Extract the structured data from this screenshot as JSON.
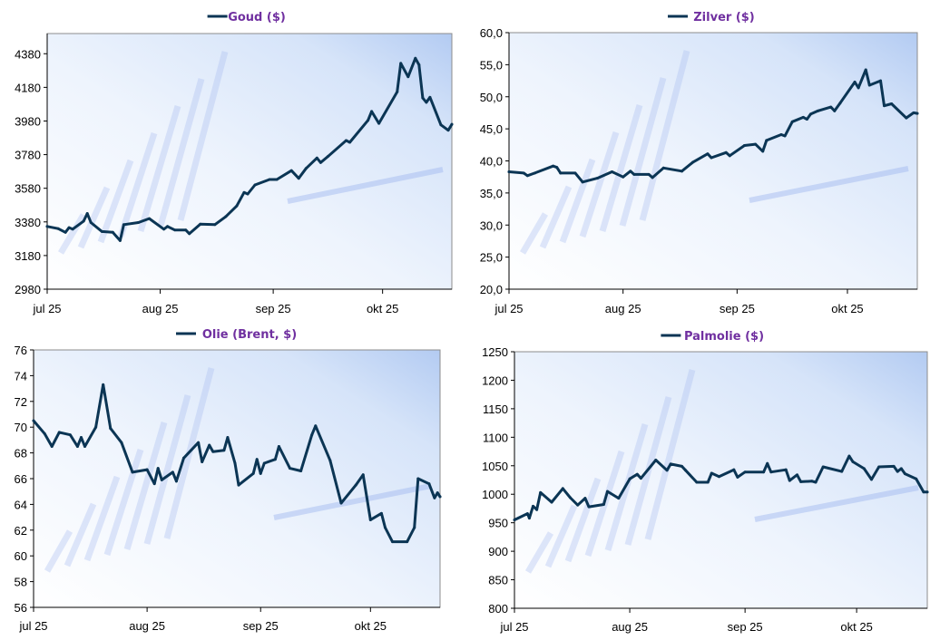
{
  "colors": {
    "line": "#0b3554",
    "title": "#7030a0",
    "axis": "#7f7f7f",
    "bg_light": "#ffffff",
    "bg_blue": "#bcd3f5"
  },
  "chart_data": [
    {
      "type": "line",
      "title": "Goud ($)",
      "legend": "top-center",
      "xlabel": "",
      "ylabel": "",
      "xlim": [
        0,
        111
      ],
      "xticks": [
        {
          "day": 0,
          "label": "jul 25"
        },
        {
          "day": 31,
          "label": "aug 25"
        },
        {
          "day": 62,
          "label": "sep 25"
        },
        {
          "day": 92,
          "label": "okt 25"
        }
      ],
      "ylim": [
        2980,
        4500
      ],
      "yticks": [
        2980,
        3180,
        3380,
        3580,
        3780,
        3980,
        4180,
        4380
      ],
      "ytick_labels": [
        "2980",
        "3180",
        "3380",
        "3580",
        "3780",
        "3980",
        "4180",
        "4380"
      ],
      "x": [
        0,
        3,
        5,
        6,
        7,
        10,
        11,
        12,
        15,
        18,
        20,
        21,
        25,
        28,
        32,
        33,
        35,
        38,
        39,
        42,
        46,
        49,
        52,
        54,
        55,
        57,
        61,
        63,
        67,
        69,
        71,
        74,
        75,
        77,
        82,
        83,
        88,
        89,
        91,
        96,
        97,
        99,
        101,
        102,
        103,
        104,
        105,
        108,
        110,
        111
      ],
      "y": [
        3353,
        3340,
        3318,
        3346,
        3337,
        3385,
        3430,
        3376,
        3323,
        3318,
        3269,
        3364,
        3376,
        3400,
        3337,
        3353,
        3332,
        3332,
        3310,
        3367,
        3364,
        3412,
        3475,
        3555,
        3546,
        3600,
        3632,
        3632,
        3685,
        3639,
        3698,
        3760,
        3733,
        3769,
        3864,
        3853,
        3984,
        4037,
        3966,
        4153,
        4323,
        4243,
        4353,
        4314,
        4117,
        4091,
        4121,
        3957,
        3925,
        3960
      ]
    },
    {
      "type": "line",
      "title": "Zilver ($)",
      "legend": "top-center",
      "xlabel": "",
      "ylabel": "",
      "xlim": [
        0,
        111
      ],
      "xticks": [
        {
          "day": 0,
          "label": "jul 25"
        },
        {
          "day": 31,
          "label": "aug 25"
        },
        {
          "day": 62,
          "label": "sep 25"
        },
        {
          "day": 92,
          "label": "okt 25"
        }
      ],
      "ylim": [
        20,
        60
      ],
      "yticks": [
        20,
        25,
        30,
        35,
        40,
        45,
        50,
        55,
        60
      ],
      "ytick_labels": [
        "20,0",
        "25,0",
        "30,0",
        "35,0",
        "40,0",
        "45,0",
        "50,0",
        "55,0",
        "60,0"
      ],
      "x": [
        0,
        4,
        5,
        7,
        12,
        13,
        14,
        18,
        20,
        24,
        28,
        31,
        33,
        34,
        38,
        39,
        42,
        47,
        50,
        54,
        55,
        59,
        60,
        64,
        67,
        69,
        70,
        74,
        75,
        77,
        80,
        81,
        82,
        84,
        87.5,
        88.5,
        90,
        94,
        95,
        97,
        98,
        101,
        102,
        104,
        108,
        110,
        111
      ],
      "y": [
        38.3,
        38.1,
        37.7,
        38.1,
        39.2,
        39.0,
        38.1,
        38.1,
        36.7,
        37.3,
        38.3,
        37.5,
        38.4,
        37.9,
        37.9,
        37.4,
        38.9,
        38.4,
        39.8,
        41.1,
        40.5,
        41.3,
        40.8,
        42.4,
        42.6,
        41.5,
        43.2,
        44.1,
        43.9,
        46.1,
        46.8,
        46.5,
        47.3,
        47.8,
        48.4,
        47.8,
        49.0,
        52.3,
        51.4,
        54.2,
        51.8,
        52.5,
        48.6,
        48.9,
        46.7,
        47.5,
        47.4
      ]
    },
    {
      "type": "line",
      "title": "Olie (Brent, $)",
      "legend": "top-center",
      "xlabel": "",
      "ylabel": "",
      "xlim": [
        0,
        111
      ],
      "xticks": [
        {
          "day": 0,
          "label": "jul 25"
        },
        {
          "day": 31,
          "label": "aug 25"
        },
        {
          "day": 62,
          "label": "sep 25"
        },
        {
          "day": 92,
          "label": "okt 25"
        }
      ],
      "ylim": [
        56,
        76
      ],
      "yticks": [
        56,
        58,
        60,
        62,
        64,
        66,
        68,
        70,
        72,
        74,
        76
      ],
      "ytick_labels": [
        "56",
        "58",
        "60",
        "62",
        "64",
        "66",
        "68",
        "70",
        "72",
        "74",
        "76"
      ],
      "x": [
        0,
        3,
        5,
        7,
        10,
        12,
        13,
        14,
        17,
        19,
        21,
        24,
        27,
        31,
        33,
        34,
        35,
        38,
        39,
        41,
        45,
        46,
        48,
        49,
        52,
        53,
        55,
        56,
        60,
        61,
        62,
        63,
        66,
        67,
        70,
        73,
        76,
        77,
        81,
        84,
        88,
        90,
        92,
        95,
        96,
        98,
        102,
        104,
        105,
        108,
        109.5,
        110.3,
        111
      ],
      "y": [
        70.5,
        69.5,
        68.5,
        69.6,
        69.4,
        68.5,
        69.2,
        68.5,
        70.0,
        73.3,
        69.9,
        68.8,
        66.5,
        66.7,
        65.6,
        66.8,
        65.9,
        66.5,
        65.8,
        67.6,
        68.8,
        67.3,
        68.6,
        68.1,
        68.2,
        69.2,
        67.2,
        65.5,
        66.4,
        67.5,
        66.4,
        67.2,
        67.5,
        68.5,
        66.8,
        66.6,
        69.4,
        70.1,
        67.4,
        64.1,
        65.5,
        66.3,
        62.8,
        63.3,
        62.2,
        61.1,
        61.1,
        62.2,
        66.0,
        65.6,
        64.5,
        64.9,
        64.6
      ]
    },
    {
      "type": "line",
      "title": "Palmolie ($)",
      "legend": "top-center",
      "xlabel": "",
      "ylabel": "",
      "xlim": [
        0,
        111
      ],
      "xticks": [
        {
          "day": 0,
          "label": "jul 25"
        },
        {
          "day": 31,
          "label": "aug 25"
        },
        {
          "day": 62,
          "label": "sep 25"
        },
        {
          "day": 92,
          "label": "okt 25"
        }
      ],
      "ylim": [
        800,
        1250
      ],
      "yticks": [
        800,
        850,
        900,
        950,
        1000,
        1050,
        1100,
        1150,
        1200,
        1250
      ],
      "ytick_labels": [
        "800",
        "850",
        "900",
        "950",
        "1000",
        "1050",
        "1100",
        "1150",
        "1200",
        "1250"
      ],
      "x": [
        0,
        3.5,
        4,
        5,
        6,
        7,
        10,
        13,
        15,
        17,
        19,
        20,
        24,
        25,
        28,
        31,
        33,
        34,
        38,
        41,
        42,
        45,
        46,
        49,
        52,
        53,
        55,
        59,
        60,
        62,
        67,
        68,
        69,
        73,
        74,
        76,
        77,
        80,
        81,
        83,
        88,
        90,
        91,
        94,
        96,
        98,
        102,
        103,
        104,
        105,
        108,
        110,
        111
      ],
      "y": [
        955,
        966,
        958,
        979,
        973,
        1003,
        986,
        1010,
        994,
        981,
        993,
        978,
        982,
        1005,
        993,
        1027,
        1035,
        1028,
        1060,
        1042,
        1053,
        1049,
        1042,
        1021,
        1021,
        1037,
        1031,
        1043,
        1030,
        1039,
        1039,
        1054,
        1039,
        1043,
        1024,
        1034,
        1022,
        1023,
        1021,
        1048,
        1040,
        1067,
        1057,
        1045,
        1026,
        1048,
        1049,
        1040,
        1045,
        1036,
        1027,
        1004,
        1004
      ]
    }
  ]
}
